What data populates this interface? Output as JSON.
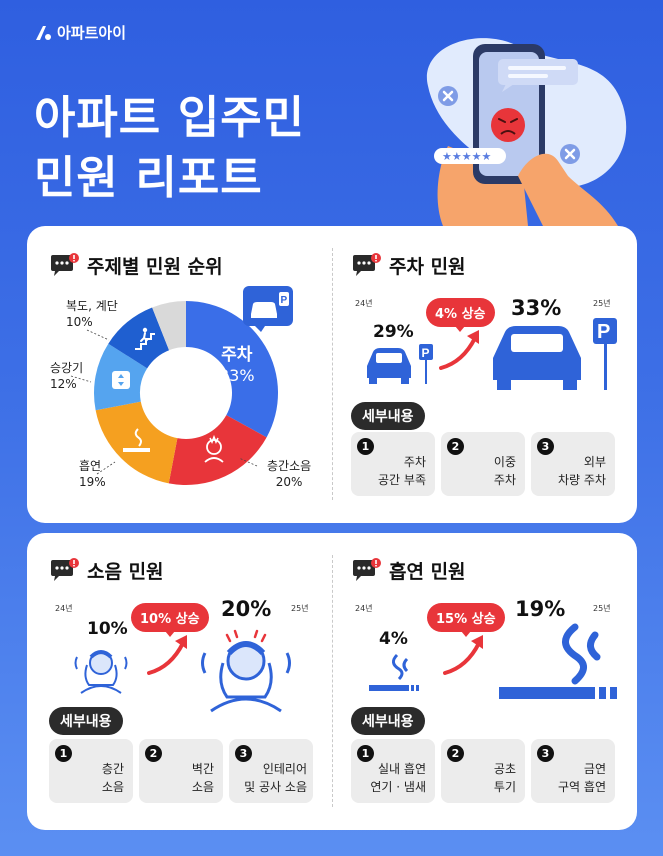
{
  "brand": {
    "name": "아파트아이"
  },
  "title": {
    "line1": "아파트 입주민",
    "line2": "민원 리포트"
  },
  "hero": {
    "rating_stars": "★★★★★"
  },
  "colors": {
    "background": "#3d6fe6",
    "accent_red": "#e8353a",
    "primary_blue": "#3a6ee8",
    "orange": "#f5a020",
    "light_blue": "#55a4ef",
    "gray": "#d9d9d9"
  },
  "ranking": {
    "heading": "주제별 민원 순위",
    "segments": [
      {
        "label": "주차",
        "percent": "33%"
      },
      {
        "label": "층간소음",
        "percent": "20%"
      },
      {
        "label": "흡연",
        "percent": "19%"
      },
      {
        "label": "승강기",
        "percent": "12%"
      },
      {
        "label": "복도, 계단",
        "percent": "10%"
      }
    ]
  },
  "chart_data": {
    "type": "pie",
    "title": "주제별 민원 순위",
    "labels": [
      "주차",
      "층간소음",
      "흡연",
      "승강기",
      "복도, 계단",
      ""
    ],
    "values": [
      33,
      20,
      19,
      12,
      10,
      6
    ],
    "colors": [
      "#3a6ee8",
      "#e8353a",
      "#f5a020",
      "#55a4ef",
      "#1f5fd0",
      "#d9d9d9"
    ]
  },
  "parking": {
    "heading": "주차 민원",
    "year_prev": "24년",
    "year_curr": "25년",
    "prev_value": "29%",
    "curr_value": "33%",
    "increase": "4% 상승",
    "detail_label": "세부내용",
    "details": [
      {
        "num": "1",
        "text": "주차\n공간 부족"
      },
      {
        "num": "2",
        "text": "이중\n주차"
      },
      {
        "num": "3",
        "text": "외부\n차량 주차"
      }
    ]
  },
  "noise": {
    "heading": "소음 민원",
    "year_prev": "24년",
    "year_curr": "25년",
    "prev_value": "10%",
    "curr_value": "20%",
    "increase": "10% 상승",
    "detail_label": "세부내용",
    "details": [
      {
        "num": "1",
        "text": "층간\n소음"
      },
      {
        "num": "2",
        "text": "벽간\n소음"
      },
      {
        "num": "3",
        "text": "인테리어\n및 공사 소음"
      }
    ]
  },
  "smoking": {
    "heading": "흡연 민원",
    "year_prev": "24년",
    "year_curr": "25년",
    "prev_value": "4%",
    "curr_value": "19%",
    "increase": "15% 상승",
    "detail_label": "세부내용",
    "details": [
      {
        "num": "1",
        "text": "실내 흡연\n연기 · 냄새"
      },
      {
        "num": "2",
        "text": "공초\n투기"
      },
      {
        "num": "3",
        "text": "금연\n구역 흡연"
      }
    ]
  }
}
